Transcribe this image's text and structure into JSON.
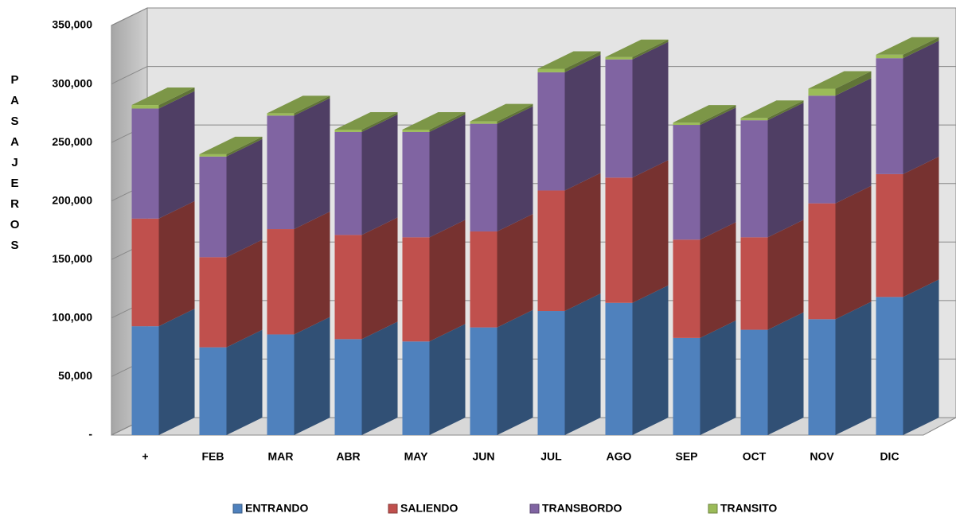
{
  "chart_data": {
    "type": "bar3d_stacked",
    "y_label": "PASAJEROS",
    "categories": [
      "+",
      "FEB",
      "MAR",
      "ABR",
      "MAY",
      "JUN",
      "JUL",
      "AGO",
      "SEP",
      "OCT",
      "NOV",
      "DIC"
    ],
    "series": [
      {
        "name": "ENTRANDO",
        "color": "#4f81bd",
        "values": [
          93000,
          75000,
          86000,
          82000,
          80000,
          92000,
          106000,
          113000,
          83000,
          90000,
          99000,
          118000
        ]
      },
      {
        "name": "SALIENDO",
        "color": "#c0504d",
        "values": [
          92000,
          77000,
          90000,
          89000,
          89000,
          82000,
          103000,
          107000,
          84000,
          79000,
          99000,
          105000
        ]
      },
      {
        "name": "TRANSBORDO",
        "color": "#8064a2",
        "values": [
          94000,
          86000,
          97000,
          88000,
          90000,
          92000,
          101000,
          101000,
          98000,
          100000,
          92000,
          99000
        ]
      },
      {
        "name": "TRANSITO",
        "color": "#9bbb59",
        "values": [
          3000,
          2000,
          2000,
          2000,
          2000,
          2000,
          3000,
          2000,
          2000,
          2000,
          6000,
          3000
        ]
      }
    ],
    "ylim": [
      0,
      350000
    ],
    "yticks": [
      {
        "value": 0,
        "label": "-"
      },
      {
        "value": 50000,
        "label": "50,000"
      },
      {
        "value": 100000,
        "label": "100,000"
      },
      {
        "value": 150000,
        "label": "150,000"
      },
      {
        "value": 200000,
        "label": "200,000"
      },
      {
        "value": 250000,
        "label": "250,000"
      },
      {
        "value": 300000,
        "label": "300,000"
      },
      {
        "value": 350000,
        "label": "350,000"
      }
    ],
    "grid": true
  }
}
